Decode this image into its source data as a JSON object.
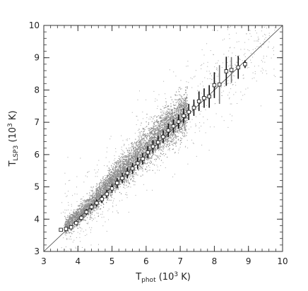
{
  "chart_data": {
    "type": "scatter",
    "title": "",
    "xlabel": {
      "main": "T",
      "sub": "phot",
      "rest": " (10",
      "sup": "3",
      "end": " K)"
    },
    "ylabel": {
      "main": "T",
      "sub": "LSP3",
      "rest": " (10",
      "sup": "3",
      "end": " K)"
    },
    "xlim": [
      3,
      10
    ],
    "ylim": [
      3,
      10
    ],
    "x_ticks": [
      "3",
      "4",
      "5",
      "6",
      "7",
      "8",
      "9",
      "10"
    ],
    "y_ticks": [
      "3",
      "4",
      "5",
      "6",
      "7",
      "8",
      "9",
      "10"
    ],
    "grid": false,
    "one_to_one_line": {
      "x": [
        3,
        10
      ],
      "y": [
        3,
        10
      ]
    },
    "point_cloud": {
      "description_color": "#8c8c8c",
      "trend_x": [
        3.4,
        4.0,
        4.5,
        5.0,
        5.5,
        6.0,
        6.5,
        7.0,
        7.5
      ],
      "trend_y": [
        3.6,
        4.1,
        4.6,
        5.2,
        5.7,
        6.25,
        6.75,
        7.2,
        7.7
      ]
    },
    "series": [
      {
        "marker": "square",
        "x": [
          3.5,
          3.65,
          3.8,
          3.95,
          4.1,
          4.25,
          4.4,
          4.55,
          4.7,
          4.85,
          5.0,
          5.15,
          5.3,
          5.45,
          5.6,
          5.75,
          5.9,
          6.05,
          6.2,
          6.35,
          6.5,
          6.65,
          6.8,
          6.95,
          7.1,
          7.25,
          7.4,
          7.55,
          7.7,
          7.85,
          8.0,
          8.15,
          8.35,
          8.5,
          8.7,
          8.9
        ],
        "y": [
          3.67,
          3.7,
          3.75,
          3.88,
          4.04,
          4.22,
          4.38,
          4.5,
          4.62,
          4.78,
          4.95,
          5.12,
          5.27,
          5.43,
          5.57,
          5.73,
          5.87,
          6.07,
          6.25,
          6.38,
          6.55,
          6.75,
          6.88,
          7.02,
          7.2,
          7.32,
          7.45,
          7.65,
          7.75,
          7.8,
          8.15,
          8.17,
          8.58,
          8.62,
          8.7,
          8.8
        ],
        "yerr": [
          0.05,
          0.05,
          0.06,
          0.07,
          0.08,
          0.09,
          0.1,
          0.11,
          0.12,
          0.13,
          0.14,
          0.15,
          0.16,
          0.17,
          0.17,
          0.18,
          0.18,
          0.19,
          0.19,
          0.2,
          0.2,
          0.21,
          0.21,
          0.22,
          0.23,
          0.25,
          0.25,
          0.3,
          0.3,
          0.35,
          0.4,
          0.6,
          0.45,
          0.4,
          0.35,
          0.12
        ]
      }
    ]
  }
}
